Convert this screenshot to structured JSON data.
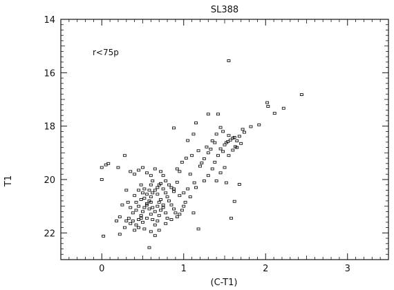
{
  "chart_data": {
    "type": "scatter",
    "title": "SL388",
    "xlabel": "(C-T1)",
    "ylabel": "T1",
    "annotation": "r<75p",
    "xlim": [
      -0.5,
      3.5
    ],
    "ylim": [
      23,
      14
    ],
    "y_inverted": true,
    "xticks": [
      0,
      1,
      2,
      3
    ],
    "yticks": [
      14,
      16,
      18,
      20,
      22
    ],
    "grid": false,
    "marker": "open-square",
    "color": "#111111",
    "points": [
      [
        1.55,
        15.55
      ],
      [
        2.44,
        16.82
      ],
      [
        2.22,
        17.33
      ],
      [
        2.11,
        17.52
      ],
      [
        2.02,
        17.12
      ],
      [
        2.03,
        17.26
      ],
      [
        1.92,
        17.95
      ],
      [
        1.82,
        18.02
      ],
      [
        1.72,
        18.12
      ],
      [
        1.74,
        18.23
      ],
      [
        1.68,
        18.38
      ],
      [
        1.62,
        18.42
      ],
      [
        1.65,
        18.55
      ],
      [
        1.6,
        18.45
      ],
      [
        1.57,
        18.52
      ],
      [
        1.54,
        18.58
      ],
      [
        1.52,
        18.62
      ],
      [
        1.5,
        18.7
      ],
      [
        1.63,
        18.77
      ],
      [
        1.55,
        18.35
      ],
      [
        1.48,
        18.2
      ],
      [
        1.45,
        18.05
      ],
      [
        1.4,
        18.3
      ],
      [
        1.38,
        18.62
      ],
      [
        1.35,
        18.55
      ],
      [
        1.33,
        18.86
      ],
      [
        1.3,
        19.0
      ],
      [
        1.28,
        18.78
      ],
      [
        1.25,
        19.22
      ],
      [
        1.22,
        19.38
      ],
      [
        1.2,
        19.5
      ],
      [
        1.18,
        18.92
      ],
      [
        1.15,
        17.88
      ],
      [
        1.12,
        18.3
      ],
      [
        1.3,
        17.55
      ],
      [
        1.42,
        17.55
      ],
      [
        0.88,
        18.07
      ],
      [
        1.05,
        18.54
      ],
      [
        1.1,
        19.1
      ],
      [
        1.03,
        19.2
      ],
      [
        0.98,
        19.35
      ],
      [
        0.95,
        19.7
      ],
      [
        0.92,
        19.6
      ],
      [
        1.08,
        19.8
      ],
      [
        1.13,
        20.12
      ],
      [
        1.15,
        20.3
      ],
      [
        1.05,
        20.35
      ],
      [
        1.0,
        20.5
      ],
      [
        0.95,
        20.6
      ],
      [
        0.88,
        20.45
      ],
      [
        0.85,
        20.3
      ],
      [
        0.82,
        20.2
      ],
      [
        0.78,
        20.05
      ],
      [
        0.75,
        19.85
      ],
      [
        0.72,
        19.7
      ],
      [
        0.65,
        19.6
      ],
      [
        0.6,
        19.85
      ],
      [
        0.55,
        19.75
      ],
      [
        0.5,
        19.55
      ],
      [
        0.45,
        19.65
      ],
      [
        0.4,
        19.8
      ],
      [
        0.35,
        19.7
      ],
      [
        0.28,
        19.1
      ],
      [
        0.2,
        19.55
      ],
      [
        0.08,
        19.4
      ],
      [
        0.05,
        19.45
      ],
      [
        0.0,
        19.55
      ],
      [
        0.0,
        20.0
      ],
      [
        0.02,
        22.12
      ],
      [
        0.22,
        22.05
      ],
      [
        0.28,
        21.8
      ],
      [
        0.3,
        21.55
      ],
      [
        0.33,
        21.45
      ],
      [
        0.35,
        21.65
      ],
      [
        0.4,
        21.9
      ],
      [
        0.42,
        21.7
      ],
      [
        0.45,
        21.5
      ],
      [
        0.48,
        21.35
      ],
      [
        0.5,
        21.2
      ],
      [
        0.52,
        21.05
      ],
      [
        0.55,
        20.95
      ],
      [
        0.58,
        20.8
      ],
      [
        0.6,
        20.65
      ],
      [
        0.62,
        20.5
      ],
      [
        0.65,
        20.4
      ],
      [
        0.68,
        20.3
      ],
      [
        0.7,
        20.2
      ],
      [
        0.72,
        20.15
      ],
      [
        0.75,
        20.35
      ],
      [
        0.78,
        20.5
      ],
      [
        0.8,
        20.65
      ],
      [
        0.82,
        20.8
      ],
      [
        0.85,
        20.95
      ],
      [
        0.88,
        21.1
      ],
      [
        0.9,
        21.25
      ],
      [
        0.92,
        21.4
      ],
      [
        0.95,
        21.3
      ],
      [
        0.98,
        21.15
      ],
      [
        1.0,
        21.0
      ],
      [
        1.02,
        20.85
      ],
      [
        0.4,
        20.6
      ],
      [
        0.42,
        20.85
      ],
      [
        0.45,
        21.0
      ],
      [
        0.48,
        20.75
      ],
      [
        0.5,
        20.5
      ],
      [
        0.52,
        20.7
      ],
      [
        0.55,
        20.9
      ],
      [
        0.58,
        21.1
      ],
      [
        0.6,
        21.3
      ],
      [
        0.62,
        21.5
      ],
      [
        0.65,
        21.7
      ],
      [
        0.68,
        21.55
      ],
      [
        0.7,
        21.35
      ],
      [
        0.72,
        21.15
      ],
      [
        0.75,
        20.95
      ],
      [
        0.55,
        21.45
      ],
      [
        0.5,
        21.6
      ],
      [
        0.45,
        21.8
      ],
      [
        0.6,
        21.95
      ],
      [
        0.65,
        22.1
      ],
      [
        0.58,
        22.55
      ],
      [
        0.7,
        21.9
      ],
      [
        0.78,
        21.65
      ],
      [
        0.85,
        21.5
      ],
      [
        0.88,
        20.35
      ],
      [
        0.92,
        20.1
      ],
      [
        0.3,
        20.4
      ],
      [
        0.32,
        20.85
      ],
      [
        0.35,
        21.05
      ],
      [
        0.38,
        21.25
      ],
      [
        0.25,
        20.95
      ],
      [
        0.22,
        21.4
      ],
      [
        0.18,
        21.55
      ],
      [
        0.6,
        20.2
      ],
      [
        0.62,
        20.05
      ],
      [
        0.68,
        20.55
      ],
      [
        0.72,
        20.75
      ],
      [
        0.75,
        21.05
      ],
      [
        0.78,
        21.25
      ],
      [
        0.8,
        21.45
      ],
      [
        0.55,
        20.55
      ],
      [
        0.52,
        20.35
      ],
      [
        0.48,
        20.2
      ],
      [
        0.45,
        20.4
      ],
      [
        0.42,
        21.15
      ],
      [
        0.38,
        21.55
      ],
      [
        0.6,
        20.85
      ],
      [
        0.62,
        21.05
      ],
      [
        0.65,
        21.2
      ],
      [
        0.68,
        21.0
      ],
      [
        0.7,
        20.85
      ],
      [
        0.58,
        20.4
      ],
      [
        0.48,
        21.45
      ],
      [
        0.52,
        21.85
      ],
      [
        1.4,
        20.05
      ],
      [
        1.45,
        19.75
      ],
      [
        1.5,
        19.55
      ],
      [
        1.52,
        20.12
      ],
      [
        1.58,
        21.45
      ],
      [
        1.62,
        20.82
      ],
      [
        1.68,
        20.18
      ],
      [
        1.18,
        21.85
      ],
      [
        1.12,
        21.25
      ],
      [
        1.08,
        20.65
      ],
      [
        1.25,
        20.05
      ],
      [
        1.3,
        19.85
      ],
      [
        1.35,
        19.6
      ],
      [
        1.38,
        19.35
      ],
      [
        1.42,
        19.1
      ],
      [
        1.45,
        18.85
      ],
      [
        1.48,
        18.95
      ],
      [
        1.55,
        19.1
      ],
      [
        1.6,
        18.9
      ],
      [
        1.65,
        18.8
      ],
      [
        1.7,
        18.65
      ]
    ]
  }
}
